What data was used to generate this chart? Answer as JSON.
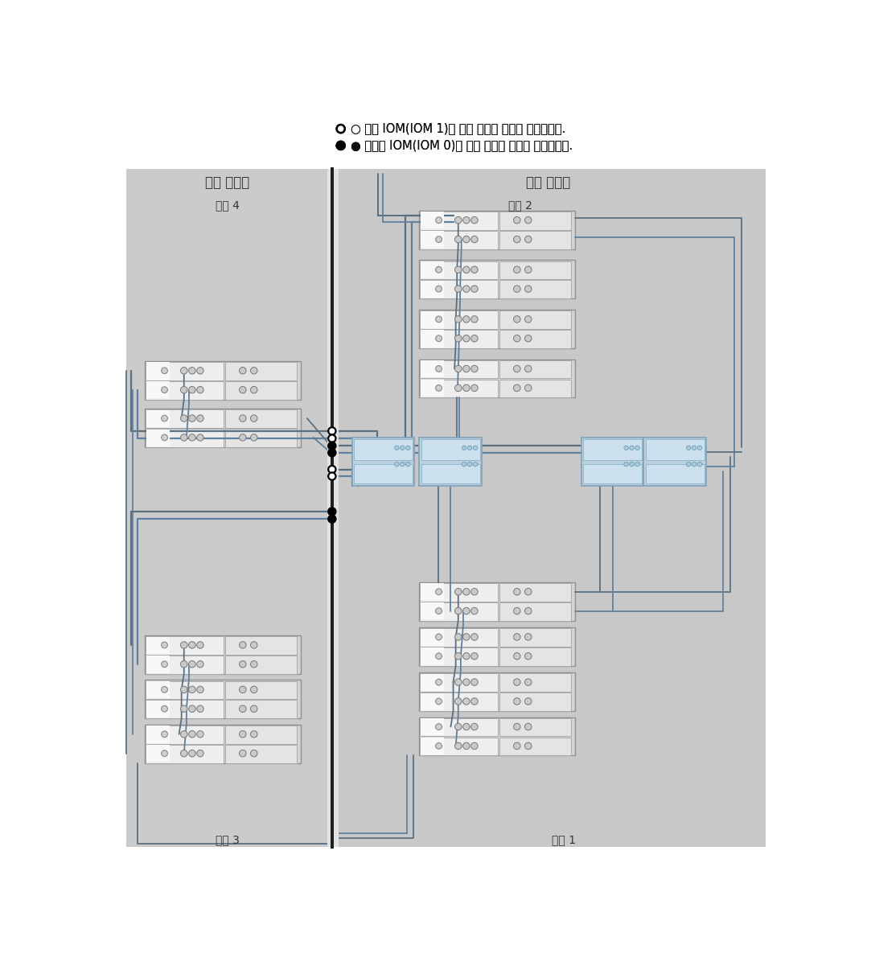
{
  "legend_open_text": "○ 위쪽 IOM(IOM 1)에 대한 케이블 연결을 나타냅니다.",
  "legend_closed_text": "● 아래쪽 IOM(IOM 0)에 대한 케이블 연결을 나타냅니다.",
  "label_expand": "확장 캐비넷",
  "label_base": "기본 캐비넷",
  "label_chain4": "체인 4",
  "label_chain3": "체인 3",
  "label_chain2": "체인 2",
  "label_chain1": "체인 1",
  "bg_gray": "#c8c8c8",
  "shelf_outer": "#d0d0d0",
  "shelf_iom_gray": "#e8e8e8",
  "shelf_iom_white": "#f0f0f0",
  "shelf_right_gray": "#d8d8d8",
  "ctrl_blue_light": "#c8dce8",
  "ctrl_blue_dark": "#b0c8d8",
  "line_col1": "#6080a0",
  "line_col2": "#4060808",
  "line_gray": "#8090a0",
  "divider_col": "#303030",
  "stripe_col": "#e0e0e0"
}
